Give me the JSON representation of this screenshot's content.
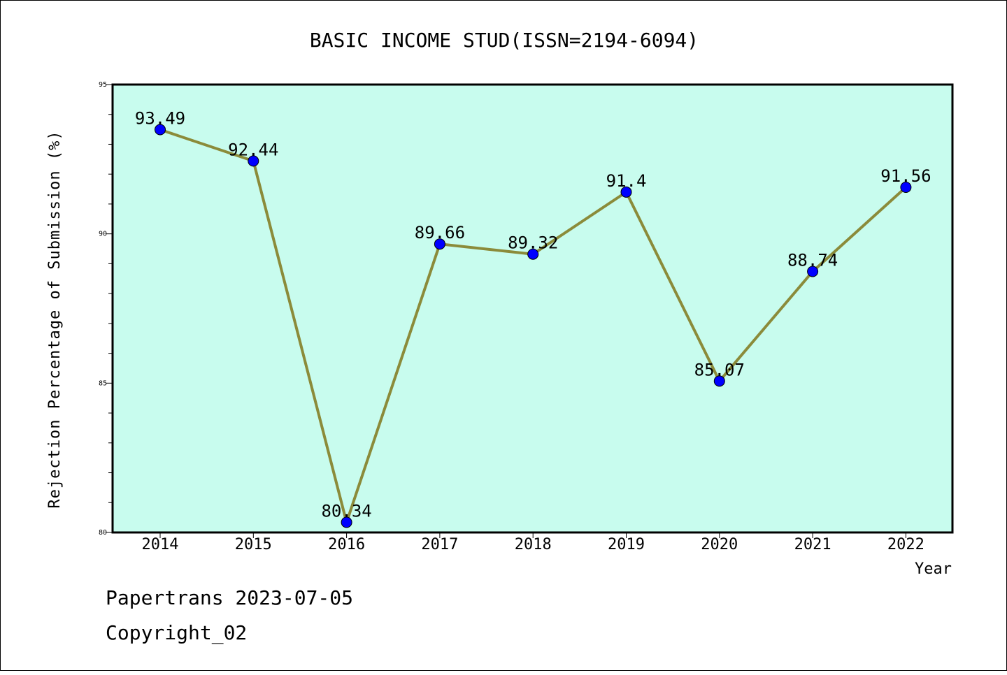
{
  "chart_data": {
    "type": "line",
    "title": "BASIC INCOME STUD(ISSN=2194-6094)",
    "xlabel": "Year",
    "ylabel": "Rejection Percentage of Submission (%)",
    "ylim": [
      80,
      95
    ],
    "yticks": [
      80,
      85,
      90,
      95
    ],
    "categories": [
      "2014",
      "2015",
      "2016",
      "2017",
      "2018",
      "2019",
      "2020",
      "2021",
      "2022"
    ],
    "series": [
      {
        "values": [
          93.49,
          92.44,
          80.34,
          89.66,
          89.32,
          91.4,
          85.07,
          88.74,
          91.56
        ],
        "labels": [
          "93.49",
          "92.44",
          "80.34",
          "89.66",
          "89.32",
          "91.4",
          "85.07",
          "88.74",
          "91.56"
        ]
      }
    ],
    "grid": false,
    "colors": {
      "plot_background": "#c8fcee",
      "line": "#8b8b3a",
      "marker": "#0000ff"
    }
  },
  "footer": {
    "line1": "Papertrans 2023-07-05",
    "line2": "Copyright_02"
  }
}
